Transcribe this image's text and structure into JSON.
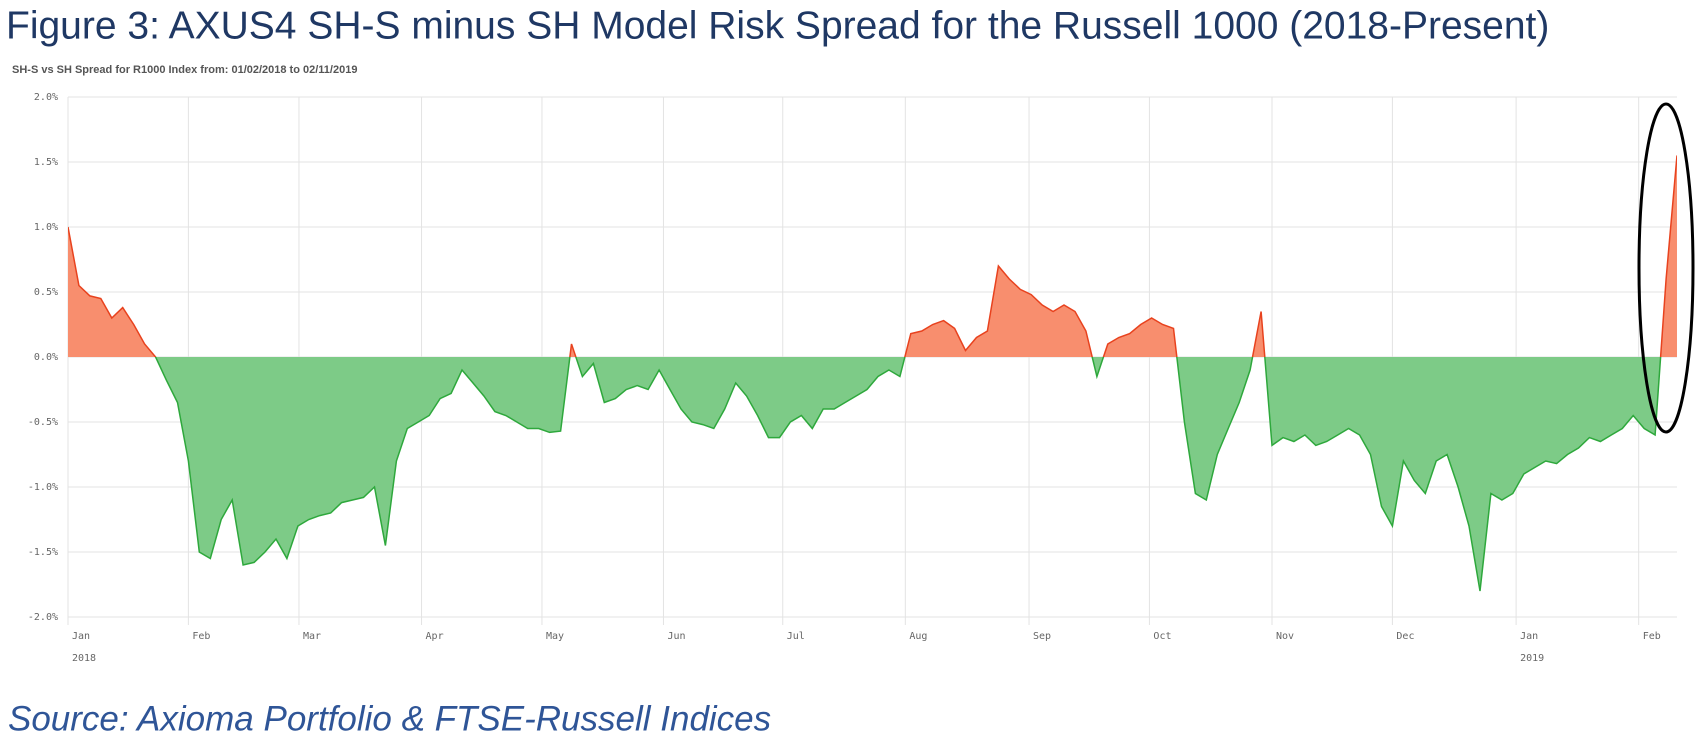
{
  "chart_data": {
    "type": "area",
    "title": "Figure 3: AXUS4 SH-S minus SH Model Risk Spread for the Russell 1000 (2018-Present)",
    "subtitle": "SH-S vs SH Spread for R1000 Index from: 01/02/2018 to 02/11/2019",
    "source": "Source: Axioma Portfolio & FTSE-Russell Indices",
    "values": [
      1.0,
      0.55,
      0.47,
      0.45,
      0.3,
      0.38,
      0.25,
      0.1,
      0.0,
      -0.18,
      -0.35,
      -0.8,
      -1.5,
      -1.55,
      -1.25,
      -1.1,
      -1.6,
      -1.58,
      -1.5,
      -1.4,
      -1.55,
      -1.3,
      -1.25,
      -1.22,
      -1.2,
      -1.12,
      -1.1,
      -1.08,
      -1.0,
      -1.45,
      -0.8,
      -0.55,
      -0.5,
      -0.45,
      -0.32,
      -0.28,
      -0.1,
      -0.2,
      -0.3,
      -0.42,
      -0.45,
      -0.5,
      -0.55,
      -0.55,
      -0.58,
      -0.57,
      0.1,
      -0.15,
      -0.05,
      -0.35,
      -0.32,
      -0.25,
      -0.22,
      -0.25,
      -0.1,
      -0.25,
      -0.4,
      -0.5,
      -0.52,
      -0.55,
      -0.4,
      -0.2,
      -0.3,
      -0.45,
      -0.62,
      -0.62,
      -0.5,
      -0.45,
      -0.55,
      -0.4,
      -0.4,
      -0.35,
      -0.3,
      -0.25,
      -0.15,
      -0.1,
      -0.15,
      0.18,
      0.2,
      0.25,
      0.28,
      0.22,
      0.05,
      0.15,
      0.2,
      0.7,
      0.6,
      0.52,
      0.48,
      0.4,
      0.35,
      0.4,
      0.35,
      0.2,
      -0.15,
      0.1,
      0.15,
      0.18,
      0.25,
      0.3,
      0.25,
      0.22,
      -0.5,
      -1.05,
      -1.1,
      -0.75,
      -0.55,
      -0.35,
      -0.1,
      0.35,
      -0.68,
      -0.62,
      -0.65,
      -0.6,
      -0.68,
      -0.65,
      -0.6,
      -0.55,
      -0.6,
      -0.75,
      -1.15,
      -1.3,
      -0.8,
      -0.95,
      -1.05,
      -0.8,
      -0.75,
      -1.0,
      -1.3,
      -1.8,
      -1.05,
      -1.1,
      -1.05,
      -0.9,
      -0.85,
      -0.8,
      -0.82,
      -0.75,
      -0.7,
      -0.62,
      -0.65,
      -0.6,
      -0.55,
      -0.45,
      -0.55,
      -0.6,
      0.6,
      1.55
    ],
    "positive_color": "#f88e6e",
    "positive_line": "#e8421e",
    "negative_color": "#7dcb87",
    "negative_line": "#2ea83c",
    "xlim": [
      0,
      147
    ],
    "xticks": [
      {
        "value": 0,
        "label": "Jan"
      },
      {
        "value": 11,
        "label": "Feb"
      },
      {
        "value": 21.1,
        "label": "Mar"
      },
      {
        "value": 32.3,
        "label": "Apr"
      },
      {
        "value": 43.3,
        "label": "May"
      },
      {
        "value": 54.4,
        "label": "Jun"
      },
      {
        "value": 65.3,
        "label": "Jul"
      },
      {
        "value": 76.5,
        "label": "Aug"
      },
      {
        "value": 87.8,
        "label": "Sep"
      },
      {
        "value": 98.8,
        "label": "Oct"
      },
      {
        "value": 110,
        "label": "Nov"
      },
      {
        "value": 121,
        "label": "Dec"
      },
      {
        "value": 132.3,
        "label": "Jan"
      },
      {
        "value": 143.5,
        "label": "Feb"
      }
    ],
    "year_labels": [
      {
        "value": 0,
        "label": "2018"
      },
      {
        "value": 132.3,
        "label": "2019"
      }
    ],
    "ylim": [
      -2.0,
      2.0
    ],
    "yticks": [
      {
        "value": 2.0,
        "label": "2.0%"
      },
      {
        "value": 1.5,
        "label": "1.5%"
      },
      {
        "value": 1.0,
        "label": "1.0%"
      },
      {
        "value": 0.5,
        "label": "0.5%"
      },
      {
        "value": 0,
        "label": "0.0%"
      },
      {
        "value": -0.5,
        "label": "-0.5%"
      },
      {
        "value": -1.0,
        "label": "-1.0%"
      },
      {
        "value": -1.5,
        "label": "-1.5%"
      },
      {
        "value": -2.0,
        "label": "-2.0%"
      }
    ],
    "grid": true
  }
}
